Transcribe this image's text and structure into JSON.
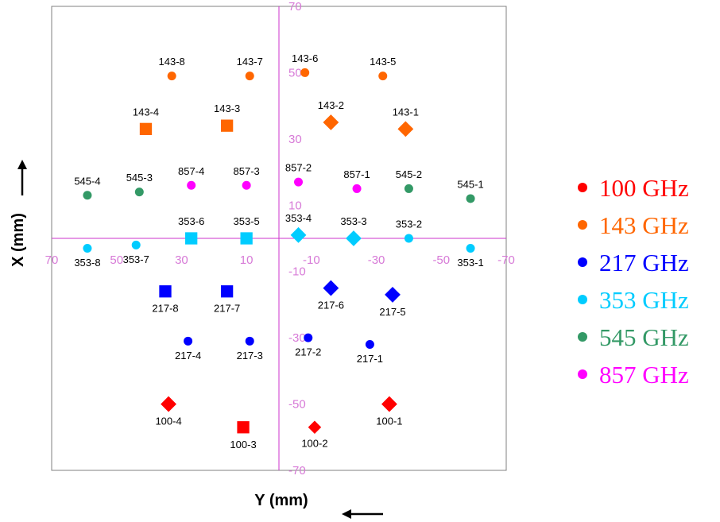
{
  "chart_data": {
    "type": "scatter",
    "title": "",
    "xlabel": "Y (mm)",
    "ylabel": "X (mm)",
    "xlim": [
      70,
      -70
    ],
    "ylim": [
      -70,
      70
    ],
    "x_ticks": [
      70,
      50,
      30,
      10,
      -10,
      -30,
      -50,
      -70
    ],
    "y_ticks": [
      70,
      50,
      30,
      10,
      -10,
      -30,
      -50,
      -70
    ],
    "x_tick_labels": [
      "70",
      "50",
      "30",
      "10",
      "-10",
      "-30",
      "-50",
      "-70"
    ],
    "y_tick_labels": [
      "70",
      "50",
      "30",
      "10",
      "-10",
      "-30",
      "-50",
      "-70"
    ],
    "legend_position": "right",
    "grid": false,
    "series": [
      {
        "name": "100 GHz",
        "color": "#ff0000",
        "points": [
          {
            "label": "100-4",
            "y": 34,
            "x": -50,
            "shape": "diamond",
            "size": "large"
          },
          {
            "label": "100-3",
            "y": 11,
            "x": -57,
            "shape": "square",
            "size": "large"
          },
          {
            "label": "100-2",
            "y": -11,
            "x": -57,
            "shape": "diamond",
            "size": "medium"
          },
          {
            "label": "100-1",
            "y": -34,
            "x": -50,
            "shape": "diamond",
            "size": "large"
          }
        ]
      },
      {
        "name": "143 GHz",
        "color": "#ff6600",
        "points": [
          {
            "label": "143-8",
            "y": 33,
            "x": 49,
            "shape": "circle",
            "size": "small"
          },
          {
            "label": "143-7",
            "y": 9,
            "x": 49,
            "shape": "circle",
            "size": "small"
          },
          {
            "label": "143-6",
            "y": -8,
            "x": 50,
            "shape": "circle",
            "size": "small"
          },
          {
            "label": "143-5",
            "y": -32,
            "x": 49,
            "shape": "circle",
            "size": "small"
          },
          {
            "label": "143-4",
            "y": 41,
            "x": 33,
            "shape": "square",
            "size": "large"
          },
          {
            "label": "143-3",
            "y": 16,
            "x": 34,
            "shape": "square",
            "size": "large"
          },
          {
            "label": "143-2",
            "y": -16,
            "x": 35,
            "shape": "diamond",
            "size": "large"
          },
          {
            "label": "143-1",
            "y": -39,
            "x": 33,
            "shape": "diamond",
            "size": "large"
          }
        ]
      },
      {
        "name": "217 GHz",
        "color": "#0000ff",
        "points": [
          {
            "label": "217-8",
            "y": 35,
            "x": -16,
            "shape": "square",
            "size": "large"
          },
          {
            "label": "217-7",
            "y": 16,
            "x": -16,
            "shape": "square",
            "size": "large"
          },
          {
            "label": "217-6",
            "y": -16,
            "x": -15,
            "shape": "diamond",
            "size": "large"
          },
          {
            "label": "217-5",
            "y": -35,
            "x": -17,
            "shape": "diamond",
            "size": "large"
          },
          {
            "label": "217-4",
            "y": 28,
            "x": -31,
            "shape": "circle",
            "size": "small"
          },
          {
            "label": "217-3",
            "y": 9,
            "x": -31,
            "shape": "circle",
            "size": "small"
          },
          {
            "label": "217-2",
            "y": -9,
            "x": -30,
            "shape": "circle",
            "size": "small"
          },
          {
            "label": "217-1",
            "y": -28,
            "x": -32,
            "shape": "circle",
            "size": "small"
          }
        ]
      },
      {
        "name": "353 GHz",
        "color": "#00ccff",
        "points": [
          {
            "label": "353-8",
            "y": 59,
            "x": -3,
            "shape": "circle",
            "size": "small"
          },
          {
            "label": "353-7",
            "y": 44,
            "x": -2,
            "shape": "circle",
            "size": "small"
          },
          {
            "label": "353-6",
            "y": 27,
            "x": 0,
            "shape": "square",
            "size": "large"
          },
          {
            "label": "353-5",
            "y": 10,
            "x": 0,
            "shape": "square",
            "size": "large"
          },
          {
            "label": "353-4",
            "y": -6,
            "x": 1,
            "shape": "diamond",
            "size": "large"
          },
          {
            "label": "353-3",
            "y": -23,
            "x": 0,
            "shape": "diamond",
            "size": "large"
          },
          {
            "label": "353-2",
            "y": -40,
            "x": 0,
            "shape": "circle",
            "size": "small"
          },
          {
            "label": "353-1",
            "y": -59,
            "x": -3,
            "shape": "circle",
            "size": "small"
          }
        ]
      },
      {
        "name": "545 GHz",
        "color": "#339966",
        "points": [
          {
            "label": "545-4",
            "y": 59,
            "x": 13,
            "shape": "circle",
            "size": "small"
          },
          {
            "label": "545-3",
            "y": 43,
            "x": 14,
            "shape": "circle",
            "size": "small"
          },
          {
            "label": "545-2",
            "y": -40,
            "x": 15,
            "shape": "circle",
            "size": "small"
          },
          {
            "label": "545-1",
            "y": -59,
            "x": 12,
            "shape": "circle",
            "size": "small"
          }
        ]
      },
      {
        "name": "857 GHz",
        "color": "#ff00ff",
        "points": [
          {
            "label": "857-4",
            "y": 27,
            "x": 16,
            "shape": "circle",
            "size": "small"
          },
          {
            "label": "857-3",
            "y": 10,
            "x": 16,
            "shape": "circle",
            "size": "small"
          },
          {
            "label": "857-2",
            "y": -6,
            "x": 17,
            "shape": "circle",
            "size": "small"
          },
          {
            "label": "857-1",
            "y": -24,
            "x": 15,
            "shape": "circle",
            "size": "small"
          }
        ]
      }
    ]
  },
  "colors": {
    "axis": "#cc33cc",
    "tick_text": "#d77ad7",
    "frame": "#808080"
  }
}
